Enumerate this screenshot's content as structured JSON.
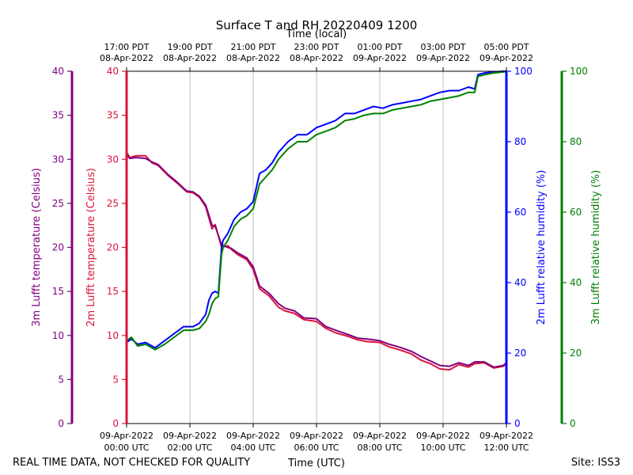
{
  "chart_data": {
    "type": "line",
    "title": "Surface T and RH 20220409 1200",
    "top_axis_title": "Time (local)",
    "xlabel": "Time (UTC)",
    "footer_left": "REAL TIME DATA, NOT CHECKED FOR QUALITY",
    "footer_right": "Site: ISS3",
    "xlim": [
      0,
      12
    ],
    "grid_x": true,
    "bottom_ticks": [
      {
        "x": 0,
        "line1": "09-Apr-2022",
        "line2": "00:00 UTC"
      },
      {
        "x": 2,
        "line1": "09-Apr-2022",
        "line2": "02:00 UTC"
      },
      {
        "x": 4,
        "line1": "09-Apr-2022",
        "line2": "04:00 UTC"
      },
      {
        "x": 6,
        "line1": "09-Apr-2022",
        "line2": "06:00 UTC"
      },
      {
        "x": 8,
        "line1": "09-Apr-2022",
        "line2": "08:00 UTC"
      },
      {
        "x": 10,
        "line1": "09-Apr-2022",
        "line2": "10:00 UTC"
      },
      {
        "x": 12,
        "line1": "09-Apr-2022",
        "line2": "12:00 UTC"
      }
    ],
    "top_ticks": [
      {
        "x": 0,
        "line1": "17:00 PDT",
        "line2": "08-Apr-2022"
      },
      {
        "x": 2,
        "line1": "19:00 PDT",
        "line2": "08-Apr-2022"
      },
      {
        "x": 4,
        "line1": "21:00 PDT",
        "line2": "08-Apr-2022"
      },
      {
        "x": 6,
        "line1": "23:00 PDT",
        "line2": "08-Apr-2022"
      },
      {
        "x": 8,
        "line1": "01:00 PDT",
        "line2": "09-Apr-2022"
      },
      {
        "x": 10,
        "line1": "03:00 PDT",
        "line2": "09-Apr-2022"
      },
      {
        "x": 12,
        "line1": "05:00 PDT",
        "line2": "09-Apr-2022"
      }
    ],
    "axes": [
      {
        "id": "t3m",
        "label": "3m Lufft temperature (Celsius)",
        "color": "#800080",
        "side": "left",
        "lim": [
          0,
          40
        ],
        "ticks": [
          0,
          5,
          10,
          15,
          20,
          25,
          30,
          35,
          40
        ]
      },
      {
        "id": "t2m",
        "label": "2m Lufft temperature (Celsius)",
        "color": "#dc143c",
        "side": "left",
        "lim": [
          0,
          40
        ],
        "ticks": [
          0,
          5,
          10,
          15,
          20,
          25,
          30,
          35,
          40
        ]
      },
      {
        "id": "rh2m",
        "label": "2m Lufft relative humidity (%)",
        "color": "#0000ff",
        "side": "right",
        "lim": [
          0,
          100
        ],
        "ticks": [
          0,
          20,
          40,
          60,
          80,
          100
        ]
      },
      {
        "id": "rh3m",
        "label": "3m Lufft relative humidity (%)",
        "color": "#008000",
        "side": "right",
        "lim": [
          0,
          100
        ],
        "ticks": [
          0,
          20,
          40,
          60,
          80,
          100
        ]
      }
    ],
    "series": [
      {
        "name": "2m Lufft temperature",
        "axis": "t2m",
        "color": "#dc143c",
        "x": [
          0,
          0.1,
          0.3,
          0.6,
          0.8,
          1.0,
          1.3,
          1.6,
          1.9,
          2.1,
          2.3,
          2.5,
          2.7,
          2.8,
          3.0,
          3.2,
          3.3,
          3.5,
          3.8,
          4.0,
          4.2,
          4.5,
          4.8,
          5.0,
          5.3,
          5.6,
          6.0,
          6.3,
          6.6,
          7.0,
          7.3,
          7.6,
          8.0,
          8.3,
          8.6,
          9.0,
          9.3,
          9.6,
          9.9,
          10.2,
          10.5,
          10.8,
          11.0,
          11.3,
          11.6,
          11.9,
          12.0
        ],
        "values": [
          30.8,
          30.2,
          30.4,
          30.4,
          29.6,
          29.3,
          28.2,
          27.3,
          26.3,
          26.2,
          25.7,
          24.6,
          22.1,
          22.6,
          20.0,
          20.2,
          19.8,
          19.2,
          18.6,
          17.5,
          15.3,
          14.5,
          13.2,
          12.8,
          12.5,
          11.8,
          11.6,
          10.8,
          10.3,
          9.9,
          9.5,
          9.3,
          9.2,
          8.7,
          8.4,
          7.9,
          7.2,
          6.8,
          6.2,
          6.1,
          6.7,
          6.4,
          6.8,
          6.9,
          6.3,
          6.5,
          6.8
        ]
      },
      {
        "name": "3m Lufft temperature",
        "axis": "t3m",
        "color": "#800080",
        "x": [
          0,
          0.1,
          0.3,
          0.6,
          0.8,
          1.0,
          1.3,
          1.6,
          1.9,
          2.1,
          2.3,
          2.5,
          2.7,
          2.8,
          3.0,
          3.2,
          3.3,
          3.5,
          3.8,
          4.0,
          4.2,
          4.5,
          4.8,
          5.0,
          5.3,
          5.6,
          6.0,
          6.3,
          6.6,
          7.0,
          7.3,
          7.6,
          8.0,
          8.3,
          8.6,
          9.0,
          9.3,
          9.6,
          9.9,
          10.2,
          10.5,
          10.8,
          11.0,
          11.3,
          11.6,
          11.9,
          12.0
        ],
        "values": [
          30.5,
          30.1,
          30.2,
          30.1,
          29.7,
          29.4,
          28.3,
          27.4,
          26.4,
          26.3,
          25.8,
          24.8,
          22.5,
          22.4,
          20.3,
          20.0,
          19.9,
          19.4,
          18.8,
          17.8,
          15.6,
          14.8,
          13.6,
          13.1,
          12.8,
          12.0,
          11.9,
          11.0,
          10.6,
          10.1,
          9.7,
          9.6,
          9.4,
          9.0,
          8.7,
          8.2,
          7.6,
          7.1,
          6.6,
          6.5,
          6.9,
          6.6,
          7.0,
          7.0,
          6.4,
          6.6,
          6.9
        ]
      },
      {
        "name": "2m Lufft relative humidity",
        "axis": "rh2m",
        "color": "#0000ff",
        "x": [
          0,
          0.15,
          0.35,
          0.6,
          0.9,
          1.2,
          1.5,
          1.8,
          2.1,
          2.3,
          2.5,
          2.6,
          2.7,
          2.8,
          2.9,
          3.0,
          3.05,
          3.2,
          3.4,
          3.6,
          3.8,
          4.0,
          4.2,
          4.4,
          4.6,
          4.8,
          5.1,
          5.4,
          5.7,
          6.0,
          6.3,
          6.6,
          6.9,
          7.2,
          7.5,
          7.8,
          8.1,
          8.4,
          8.7,
          9.0,
          9.3,
          9.6,
          9.9,
          10.2,
          10.5,
          10.8,
          11.0,
          11.1,
          11.3,
          11.6,
          11.9,
          12.0
        ],
        "values": [
          23,
          24,
          22.5,
          23,
          21.5,
          23.5,
          25.5,
          27.5,
          27.5,
          28.5,
          31,
          35,
          37,
          37.5,
          37,
          50,
          52,
          54,
          58,
          60,
          61,
          63,
          71,
          72,
          74,
          77,
          80,
          82,
          82,
          84,
          85,
          86,
          88,
          88,
          89,
          90,
          89.5,
          90.5,
          91,
          91.5,
          92,
          93,
          94,
          94.5,
          94.5,
          95.5,
          95,
          99,
          99.5,
          99.8,
          100,
          100
        ]
      },
      {
        "name": "3m Lufft relative humidity",
        "axis": "rh3m",
        "color": "#008000",
        "x": [
          0,
          0.15,
          0.35,
          0.6,
          0.9,
          1.2,
          1.5,
          1.8,
          2.1,
          2.3,
          2.5,
          2.6,
          2.7,
          2.8,
          2.9,
          3.0,
          3.05,
          3.2,
          3.4,
          3.6,
          3.8,
          4.0,
          4.2,
          4.4,
          4.6,
          4.8,
          5.1,
          5.4,
          5.7,
          6.0,
          6.3,
          6.6,
          6.9,
          7.2,
          7.5,
          7.8,
          8.1,
          8.4,
          8.7,
          9.0,
          9.3,
          9.6,
          9.9,
          10.2,
          10.5,
          10.8,
          11.0,
          11.1,
          11.3,
          11.6,
          11.9,
          12.0
        ],
        "values": [
          23.5,
          24.5,
          22,
          22.5,
          21,
          22.5,
          24.5,
          26.5,
          26.5,
          27,
          29,
          31,
          34,
          35.5,
          36,
          48,
          50,
          52,
          56,
          58,
          59,
          61,
          68,
          70,
          72,
          75,
          78,
          80,
          80,
          82,
          83,
          84,
          86,
          86.5,
          87.5,
          88,
          88,
          89,
          89.5,
          90,
          90.5,
          91.5,
          92,
          92.5,
          93,
          94,
          94,
          98.5,
          99,
          99.5,
          99.8,
          100
        ]
      }
    ]
  }
}
